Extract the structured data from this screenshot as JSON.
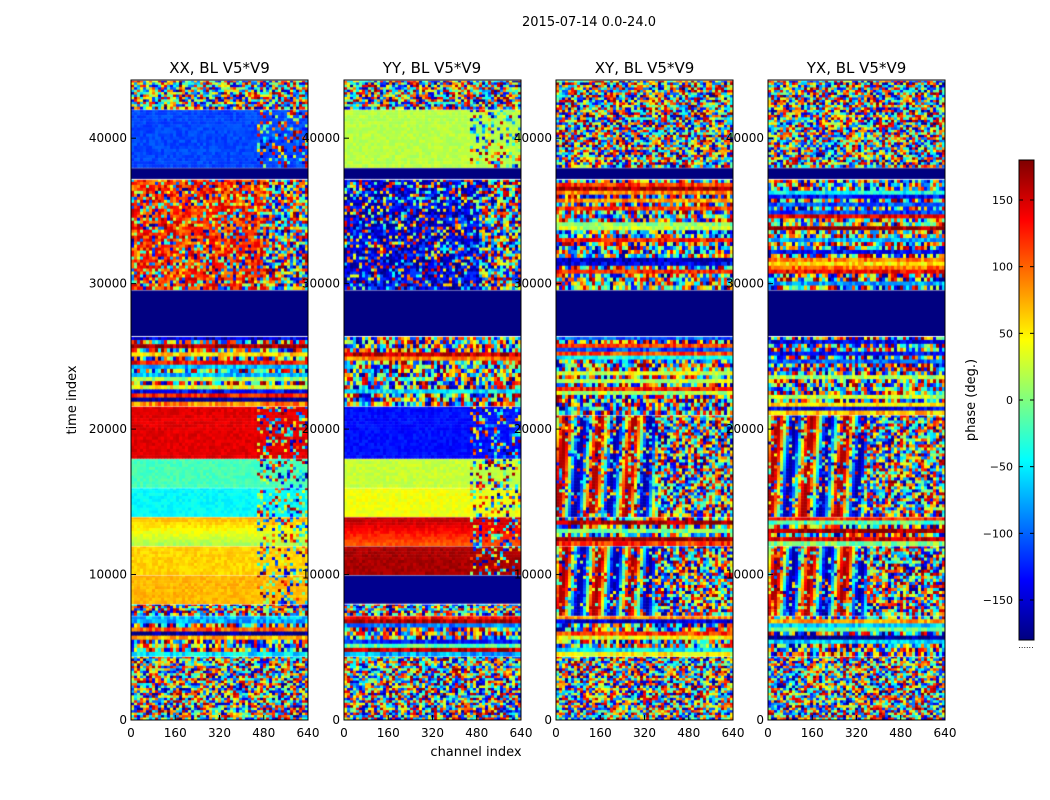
{
  "chart_data": {
    "type": "heatmap",
    "suptitle": "2015-07-14 0.0-24.0",
    "xlabel": "channel index",
    "ylabel": "time index",
    "x_range": [
      0,
      640
    ],
    "y_range": [
      0,
      44000
    ],
    "x_ticks": [
      0,
      160,
      320,
      480,
      640
    ],
    "y_ticks": [
      0,
      10000,
      20000,
      30000,
      40000
    ],
    "colorbar": {
      "label": "phase (deg.)",
      "range": [
        -180,
        180
      ],
      "ticks": [
        -150,
        -100,
        -50,
        0,
        50,
        100,
        150
      ],
      "colormap": "jet",
      "under_label": "......"
    },
    "panels": [
      {
        "title": "XX, BL V5*V9",
        "bands": [
          {
            "y": [
              0,
              4400
            ],
            "mode": "noise"
          },
          {
            "y": [
              4400,
              7200
            ],
            "mode": "stripes"
          },
          {
            "y": [
              7200,
              8000
            ],
            "mode": "noise"
          },
          {
            "y": [
              8000,
              10000
            ],
            "mode": "smooth",
            "value": 70
          },
          {
            "y": [
              10000,
              12000
            ],
            "mode": "smooth",
            "value": 60
          },
          {
            "y": [
              12000,
              14000
            ],
            "mode": "gradient",
            "value": 10,
            "value2": 70
          },
          {
            "y": [
              14000,
              16000
            ],
            "mode": "smooth",
            "value": -45
          },
          {
            "y": [
              16000,
              18000
            ],
            "mode": "smooth",
            "value": -20
          },
          {
            "y": [
              18000,
              21600
            ],
            "mode": "smooth",
            "value": 145
          },
          {
            "y": [
              21600,
              26400
            ],
            "mode": "stripes"
          },
          {
            "y": [
              26400,
              29600
            ],
            "mode": "solid",
            "value": -180
          },
          {
            "y": [
              29600,
              37200
            ],
            "mode": "speckle",
            "value": 120
          },
          {
            "y": [
              37200,
              38000
            ],
            "mode": "solid",
            "value": -180
          },
          {
            "y": [
              38000,
              42000
            ],
            "mode": "smooth",
            "value": -110
          },
          {
            "y": [
              42000,
              44000
            ],
            "mode": "noise"
          }
        ]
      },
      {
        "title": "YY, BL V5*V9",
        "bands": [
          {
            "y": [
              0,
              4400
            ],
            "mode": "noise"
          },
          {
            "y": [
              4400,
              7200
            ],
            "mode": "stripes"
          },
          {
            "y": [
              7200,
              8000
            ],
            "mode": "noise"
          },
          {
            "y": [
              8000,
              10000
            ],
            "mode": "solid",
            "value": -175
          },
          {
            "y": [
              10000,
              12000
            ],
            "mode": "smooth",
            "value": 165
          },
          {
            "y": [
              12000,
              14000
            ],
            "mode": "gradient",
            "value": 100,
            "value2": 160
          },
          {
            "y": [
              14000,
              16000
            ],
            "mode": "smooth",
            "value": 40
          },
          {
            "y": [
              16000,
              18000
            ],
            "mode": "smooth",
            "value": 25
          },
          {
            "y": [
              18000,
              21600
            ],
            "mode": "smooth",
            "value": -130
          },
          {
            "y": [
              21600,
              26400
            ],
            "mode": "stripes"
          },
          {
            "y": [
              26400,
              29600
            ],
            "mode": "solid",
            "value": -180
          },
          {
            "y": [
              29600,
              37200
            ],
            "mode": "speckle",
            "value": -150
          },
          {
            "y": [
              37200,
              38000
            ],
            "mode": "solid",
            "value": -180
          },
          {
            "y": [
              38000,
              42000
            ],
            "mode": "smooth",
            "value": 20
          },
          {
            "y": [
              42000,
              44000
            ],
            "mode": "noise"
          }
        ]
      },
      {
        "title": "XY, BL V5*V9",
        "bands": [
          {
            "y": [
              0,
              4400
            ],
            "mode": "noise"
          },
          {
            "y": [
              4400,
              7200
            ],
            "mode": "stripes"
          },
          {
            "y": [
              7200,
              12000
            ],
            "mode": "vstripes"
          },
          {
            "y": [
              12000,
              14000
            ],
            "mode": "stripes"
          },
          {
            "y": [
              14000,
              21000
            ],
            "mode": "vstripes"
          },
          {
            "y": [
              21000,
              26400
            ],
            "mode": "stripes"
          },
          {
            "y": [
              26400,
              29600
            ],
            "mode": "solid",
            "value": -180
          },
          {
            "y": [
              29600,
              37200
            ],
            "mode": "stripes"
          },
          {
            "y": [
              37200,
              38000
            ],
            "mode": "solid",
            "value": -180
          },
          {
            "y": [
              38000,
              44000
            ],
            "mode": "noise"
          }
        ]
      },
      {
        "title": "YX, BL V5*V9",
        "bands": [
          {
            "y": [
              0,
              4400
            ],
            "mode": "noise"
          },
          {
            "y": [
              4400,
              7200
            ],
            "mode": "stripes"
          },
          {
            "y": [
              7200,
              12000
            ],
            "mode": "vstripes"
          },
          {
            "y": [
              12000,
              14000
            ],
            "mode": "stripes"
          },
          {
            "y": [
              14000,
              21000
            ],
            "mode": "vstripes"
          },
          {
            "y": [
              21000,
              26400
            ],
            "mode": "stripes"
          },
          {
            "y": [
              26400,
              29600
            ],
            "mode": "solid",
            "value": -180
          },
          {
            "y": [
              29600,
              37200
            ],
            "mode": "stripes"
          },
          {
            "y": [
              37200,
              38000
            ],
            "mode": "solid",
            "value": -180
          },
          {
            "y": [
              38000,
              44000
            ],
            "mode": "noise"
          }
        ]
      }
    ]
  }
}
